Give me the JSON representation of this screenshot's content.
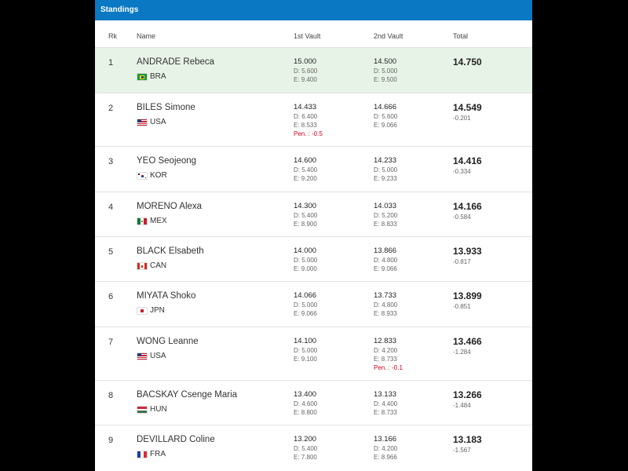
{
  "header": {
    "title": "Standings"
  },
  "table": {
    "columns": [
      "Rk",
      "Name",
      "1st Vault",
      "2nd Vault",
      "Total"
    ],
    "rows": [
      {
        "rank": "1",
        "name": "ANDRADE Rebeca",
        "country": "BRA",
        "vault1": {
          "score": "15.000",
          "d": "D: 5.600",
          "e": "E: 9.400"
        },
        "vault2": {
          "score": "14.500",
          "d": "D: 5.000",
          "e": "E: 9.500"
        },
        "total": "14.750"
      },
      {
        "rank": "2",
        "name": "BILES Simone",
        "country": "USA",
        "vault1": {
          "score": "14.433",
          "d": "D: 6.400",
          "e": "E: 8.533",
          "pen": "Pen. : -0.5"
        },
        "vault2": {
          "score": "14.666",
          "d": "D: 5.600",
          "e": "E: 9.066"
        },
        "total": "14.549",
        "behind": "-0.201"
      },
      {
        "rank": "3",
        "name": "YEO Seojeong",
        "country": "KOR",
        "vault1": {
          "score": "14.600",
          "d": "D: 5.400",
          "e": "E: 9.200"
        },
        "vault2": {
          "score": "14.233",
          "d": "D: 5.000",
          "e": "E: 9.233"
        },
        "total": "14.416",
        "behind": "-0.334"
      },
      {
        "rank": "4",
        "name": "MORENO Alexa",
        "country": "MEX",
        "vault1": {
          "score": "14.300",
          "d": "D: 5.400",
          "e": "E: 8.900"
        },
        "vault2": {
          "score": "14.033",
          "d": "D: 5.200",
          "e": "E: 8.833"
        },
        "total": "14.166",
        "behind": "-0.584"
      },
      {
        "rank": "5",
        "name": "BLACK Elsabeth",
        "country": "CAN",
        "vault1": {
          "score": "14.000",
          "d": "D: 5.000",
          "e": "E: 9.000"
        },
        "vault2": {
          "score": "13.866",
          "d": "D: 4.800",
          "e": "E: 9.066"
        },
        "total": "13.933",
        "behind": "-0.817"
      },
      {
        "rank": "6",
        "name": "MIYATA Shoko",
        "country": "JPN",
        "vault1": {
          "score": "14.066",
          "d": "D: 5.000",
          "e": "E: 9.066"
        },
        "vault2": {
          "score": "13.733",
          "d": "D: 4.800",
          "e": "E: 8.933"
        },
        "total": "13.899",
        "behind": "-0.851"
      },
      {
        "rank": "7",
        "name": "WONG Leanne",
        "country": "USA",
        "vault1": {
          "score": "14.100",
          "d": "D: 5.000",
          "e": "E: 9.100"
        },
        "vault2": {
          "score": "12.833",
          "d": "D: 4.200",
          "e": "E: 8.733",
          "pen": "Pen. : -0.1"
        },
        "total": "13.466",
        "behind": "-1.284"
      },
      {
        "rank": "8",
        "name": "BACSKAY Csenge Maria",
        "country": "HUN",
        "vault1": {
          "score": "13.400",
          "d": "D: 4.600",
          "e": "E: 8.800"
        },
        "vault2": {
          "score": "13.133",
          "d": "D: 4.400",
          "e": "E: 8.733"
        },
        "total": "13.266",
        "behind": "-1.484"
      },
      {
        "rank": "9",
        "name": "DEVILLARD Coline",
        "country": "FRA",
        "vault1": {
          "score": "13.200",
          "d": "D: 5.400",
          "e": "E: 7.800"
        },
        "vault2": {
          "score": "13.166",
          "d": "D: 4.200",
          "e": "E: 8.966"
        },
        "total": "13.183",
        "behind": "-1.567"
      }
    ]
  }
}
